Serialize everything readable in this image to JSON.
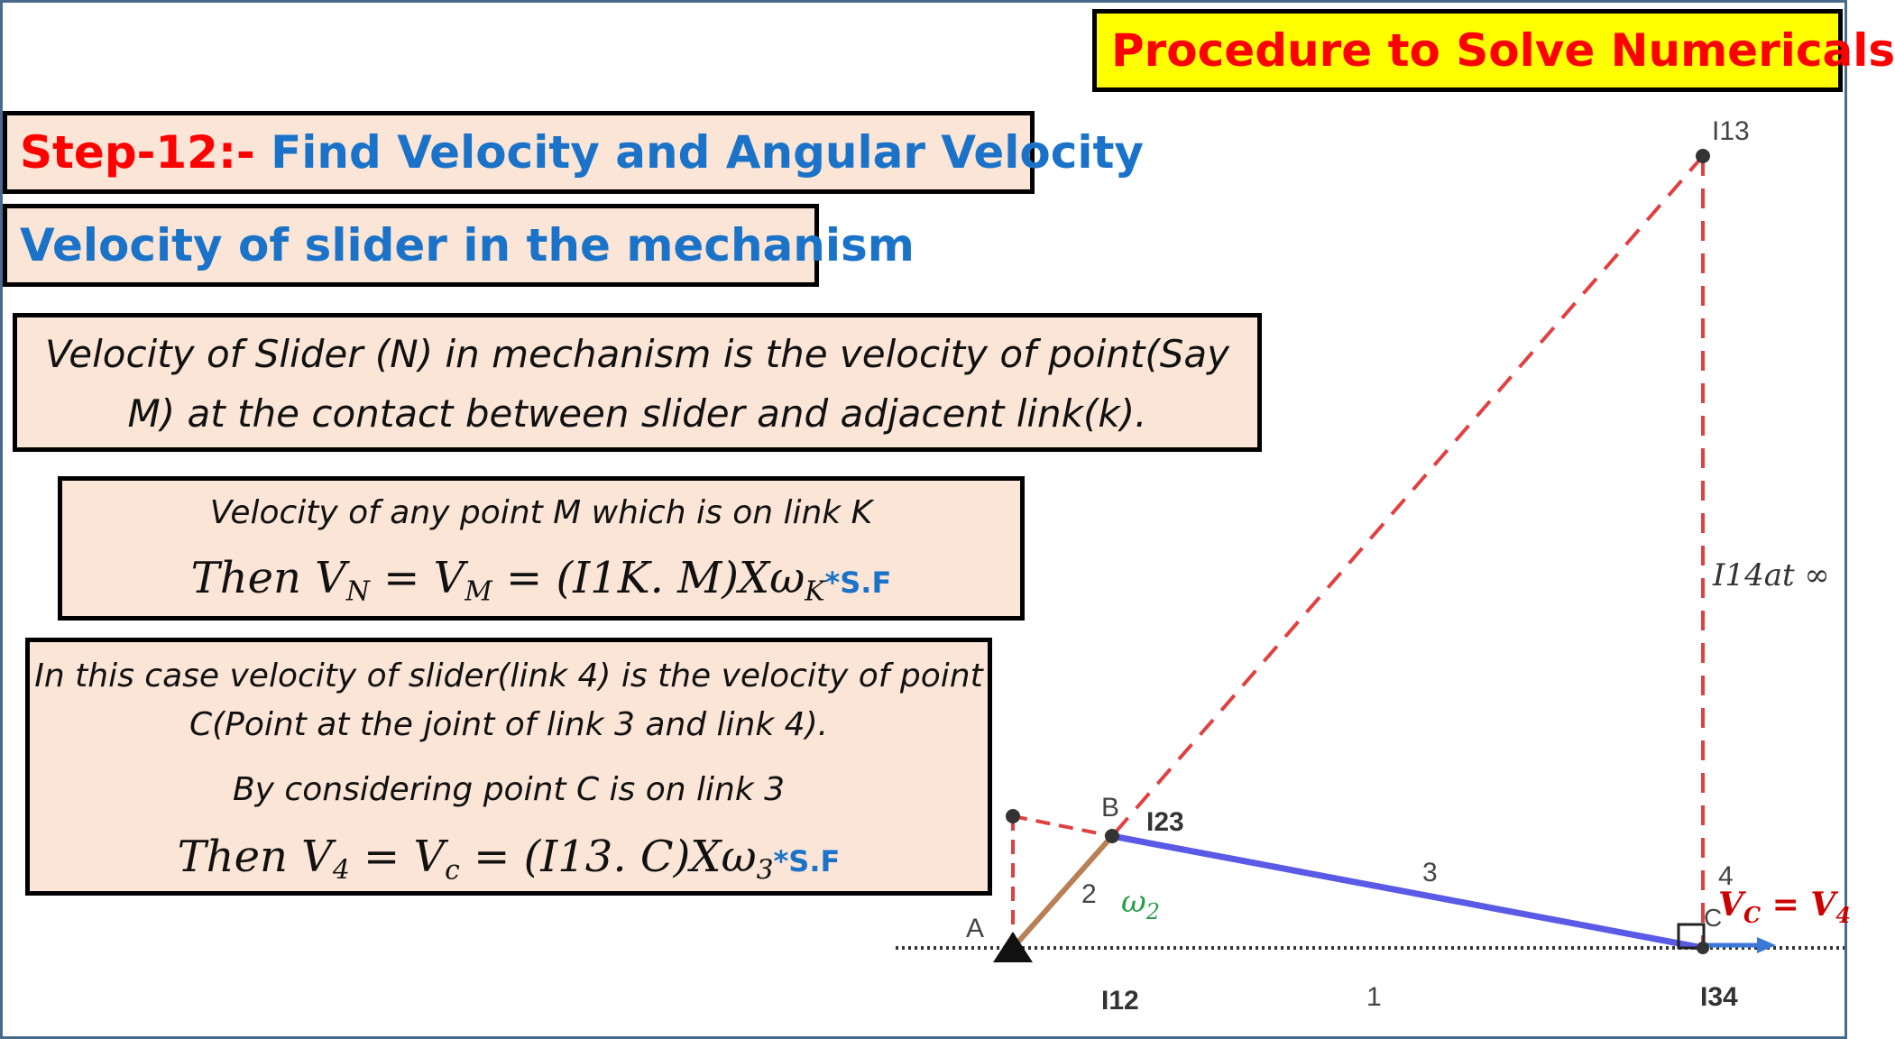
{
  "slide": {
    "title": "Procedure to Solve Numericals",
    "step_prefix": "Step-12:- ",
    "step_title": "Find Velocity and Angular Velocity",
    "subtitle": "Velocity of slider in the mechanism",
    "definition": "Velocity of Slider (N) in mechanism is  the velocity of point(Say M) at the contact between slider and adjacent link(k).",
    "formula_box": {
      "line1": "Velocity of any point M which is on link K",
      "formula_prefix": "Then V",
      "sub_n": "N",
      "eq1": " = V",
      "sub_m": "M",
      "rest": " = (I1K. M)Xω",
      "sub_k": "K",
      "sf": "*S.F"
    },
    "case_box": {
      "line1": "In this case velocity of slider(link 4) is the velocity of point",
      "line2": "C(Point at the joint of link 3 and link 4).",
      "line3": "By considering point C is on link 3",
      "formula_prefix": "Then V",
      "sub_4": "4",
      "eq1": " = V",
      "sub_c": "c",
      "rest": " = (I13. C)Xω",
      "sub_3": "3",
      "sf": "*S.F"
    }
  },
  "diagram": {
    "labels": {
      "i13": "I13",
      "i14": "I14at ∞",
      "b": "B",
      "i23": "I23",
      "a": "A",
      "link2": "2",
      "omega": "ω",
      "omega_sub": "2",
      "link3": "3",
      "link4": "4",
      "c": "C",
      "vc": "V",
      "vc_sub": "C",
      "vc_eq": " = V",
      "vc_sub4": "4",
      "i12": "I12",
      "link1": "1",
      "i34": "I34"
    },
    "colors": {
      "dashed_red": "#e04040",
      "link3_blue": "#5a5ae6",
      "link2_brown": "#b98055",
      "arrow_blue": "#3c78d8",
      "omega_green": "#2a9d4b",
      "vc_red": "#cc0000"
    }
  }
}
